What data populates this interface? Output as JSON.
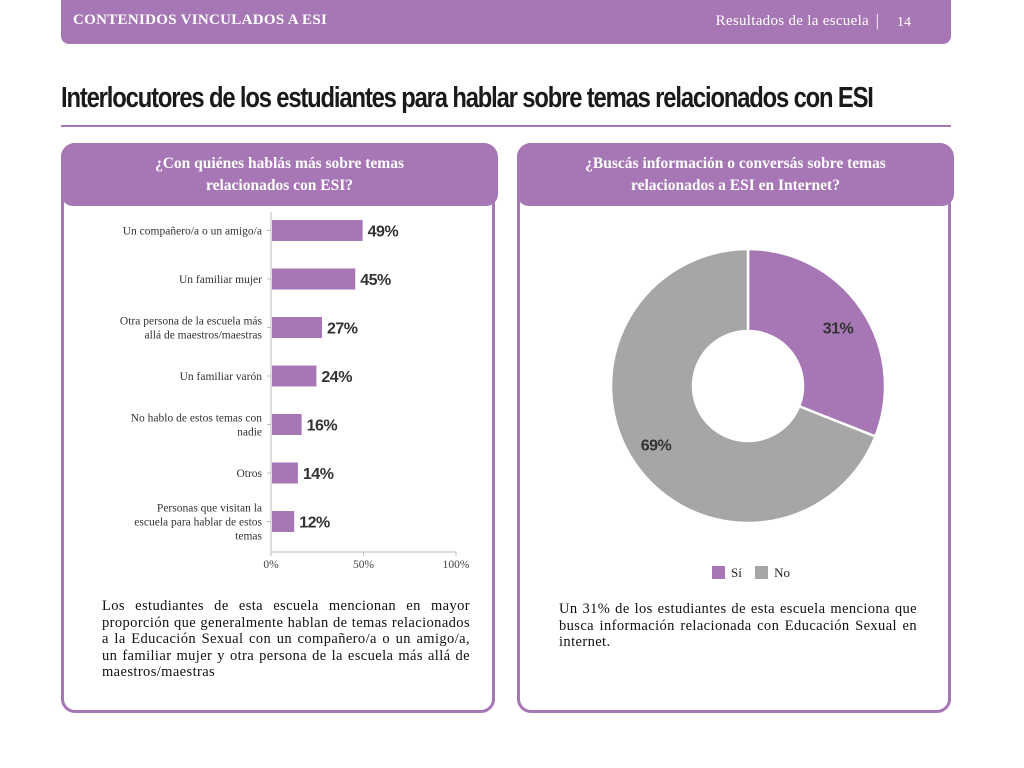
{
  "header": {
    "section": "CONTENIDOS VINCULADOS A ESI",
    "context": "Resultados  de la escuela",
    "separator": "|",
    "page": "14"
  },
  "title": "Interlocutores de los estudiantes para hablar sobre temas relacionados con ESI",
  "left_panel": {
    "heading_line1": "¿Con quiénes hablás más sobre temas",
    "heading_line2": "relacionados con ESI?",
    "note": "Los estudiantes de esta escuela mencionan en mayor proporción que generalmente hablan de temas relacionados a la Educación Sexual con un compañero/a o un amigo/a, un familiar mujer y otra persona de la escuela más allá de maestros/maestras"
  },
  "right_panel": {
    "heading_line1": "¿Buscás información o conversás sobre temas",
    "heading_line2": "relacionados a ESI en Internet?",
    "note": "Un 31% de los estudiantes de esta escuela menciona que busca información relacionada con Educación Sexual en internet."
  },
  "colors": {
    "accent": "#a676b5",
    "bar": "#a676b5",
    "no": "#a6a6a6"
  },
  "chart_data": [
    {
      "type": "bar",
      "orientation": "horizontal",
      "categories": [
        [
          "Un compañero/a o un amigo/a"
        ],
        [
          "Un familiar mujer"
        ],
        [
          "Otra persona de la escuela más",
          "allá de maestros/maestras"
        ],
        [
          "Un familiar varón"
        ],
        [
          "No hablo de estos temas con",
          "nadie"
        ],
        [
          "Otros"
        ],
        [
          "Personas que visitan la",
          "escuela para hablar de estos",
          "temas"
        ]
      ],
      "values": [
        49,
        45,
        27,
        24,
        16,
        14,
        12
      ],
      "value_labels": [
        "49%",
        "45%",
        "27%",
        "24%",
        "16%",
        "14%",
        "12%"
      ],
      "xlim": [
        0,
        100
      ],
      "xticks": [
        "0%",
        "50%",
        "100%"
      ],
      "grid": false
    },
    {
      "type": "pie",
      "donut": true,
      "labels": [
        "Sí",
        "No"
      ],
      "values": [
        31,
        69
      ],
      "value_labels": [
        "31%",
        "69%"
      ],
      "colors": [
        "#a676b5",
        "#a6a6a6"
      ],
      "legend": "bottom"
    }
  ]
}
